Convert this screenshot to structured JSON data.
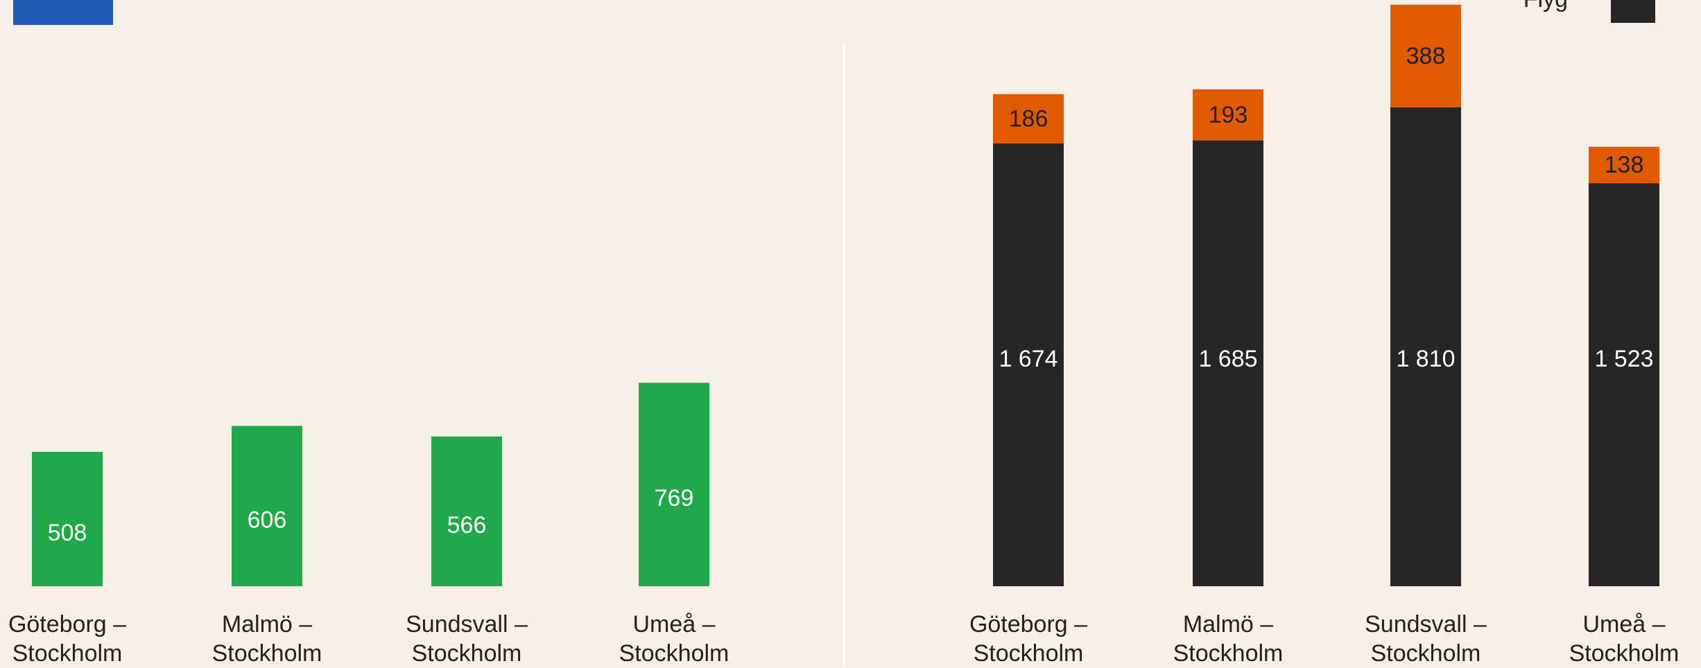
{
  "chart_data": [
    {
      "type": "bar",
      "categories": [
        "Göteborg –\nStockholm",
        "Malmö –\nStockholm",
        "Sundsvall –\nStockholm",
        "Umeå –\nStockholm"
      ],
      "values": [
        508,
        606,
        566,
        769
      ],
      "color": "#21a84a",
      "ylim": [
        0,
        2200
      ]
    },
    {
      "type": "stacked_bar",
      "categories": [
        "Göteborg –\nStockholm",
        "Malmö –\nStockholm",
        "Sundsvall –\nStockholm",
        "Umeå –\nStockholm"
      ],
      "series": [
        {
          "name": "Flyg",
          "color": "#262626",
          "values": [
            1674,
            1685,
            1810,
            1523
          ],
          "value_labels": [
            "1 674",
            "1 685",
            "1 810",
            "1 523"
          ]
        },
        {
          "color": "#e05a00",
          "values": [
            186,
            193,
            388,
            138
          ]
        }
      ],
      "ylim": [
        0,
        2200
      ],
      "legend": "top-right"
    }
  ]
}
